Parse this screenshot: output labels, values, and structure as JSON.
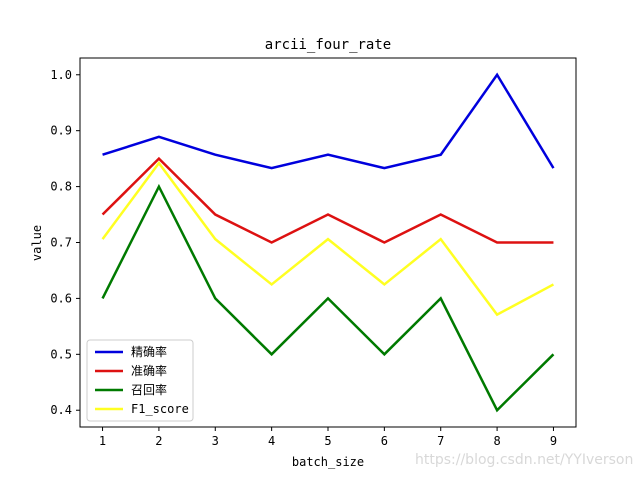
{
  "chart_data": {
    "type": "line",
    "title": "arcii_four_rate",
    "xlabel": "batch_size",
    "ylabel": "value",
    "x": [
      1,
      2,
      3,
      4,
      5,
      6,
      7,
      8,
      9
    ],
    "x_ticks": [
      "1",
      "2",
      "3",
      "4",
      "5",
      "6",
      "7",
      "8",
      "9"
    ],
    "y_ticks": [
      "0.4",
      "0.5",
      "0.6",
      "0.7",
      "0.8",
      "0.9",
      "1.0"
    ],
    "xlim": [
      0.6,
      9.4
    ],
    "ylim": [
      0.37,
      1.03
    ],
    "grid": false,
    "legend_position": "lower-left",
    "series": [
      {
        "name": "精确率",
        "color": "#0000dd",
        "values": [
          0.857,
          0.889,
          0.857,
          0.833,
          0.857,
          0.833,
          0.857,
          1.0,
          0.833
        ]
      },
      {
        "name": "准确率",
        "color": "#dd1111",
        "values": [
          0.75,
          0.85,
          0.75,
          0.7,
          0.75,
          0.7,
          0.75,
          0.7,
          0.7
        ]
      },
      {
        "name": "召回率",
        "color": "#007a00",
        "values": [
          0.6,
          0.8,
          0.6,
          0.5,
          0.6,
          0.5,
          0.6,
          0.4,
          0.5
        ]
      },
      {
        "name": "F1_score",
        "color": "#ffff22",
        "values": [
          0.706,
          0.842,
          0.706,
          0.625,
          0.706,
          0.625,
          0.706,
          0.571,
          0.625
        ]
      }
    ]
  },
  "watermark": "https://blog.csdn.net/YYIverson"
}
